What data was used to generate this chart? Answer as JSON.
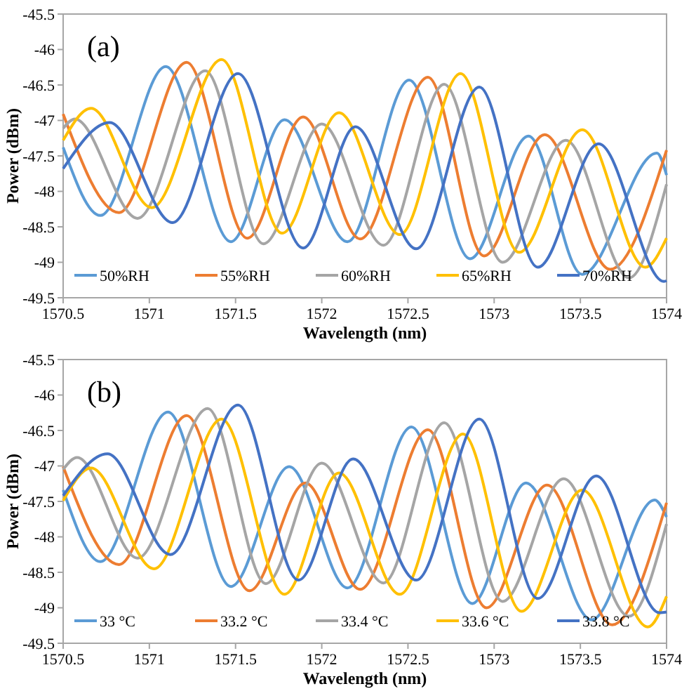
{
  "chart_data": [
    {
      "type": "line",
      "annotations": [
        "(a)"
      ],
      "xlabel": "Wavelength (nm)",
      "ylabel": "Power (dBm)",
      "xlim": [
        1570.5,
        1574
      ],
      "ylim": [
        -49.5,
        -45.5
      ],
      "xticks": [
        1570.5,
        1571,
        1571.5,
        1572,
        1572.5,
        1573,
        1573.5,
        1574
      ],
      "yticks": [
        -49.5,
        -49,
        -48.5,
        -48,
        -47.5,
        -47,
        -46.5,
        -46,
        -45.5
      ],
      "legend": "bottom left",
      "grid": false,
      "marker": "none",
      "line_style": "solid",
      "series": [
        {
          "name": "50%RH",
          "color": "#5b9bd5",
          "x": [
            1570.5,
            1570.716,
            1571.095,
            1571.473,
            1571.784,
            1572.149,
            1572.507,
            1572.86,
            1573.199,
            1573.51,
            1573.944,
            1574
          ],
          "values": [
            -47.38,
            -48.34,
            -46.24,
            -48.71,
            -46.99,
            -48.71,
            -46.43,
            -48.95,
            -47.22,
            -49.17,
            -47.46,
            -47.77
          ]
        },
        {
          "name": "55%RH",
          "color": "#ed7d31",
          "x": [
            1570.5,
            1570.824,
            1571.216,
            1571.568,
            1571.892,
            1572.223,
            1572.616,
            1572.941,
            1573.293,
            1573.673,
            1574
          ],
          "values": [
            -46.91,
            -48.3,
            -46.18,
            -48.66,
            -46.95,
            -48.67,
            -46.39,
            -48.91,
            -47.2,
            -49.1,
            -47.42
          ]
        },
        {
          "name": "60%RH",
          "color": "#a5a5a5",
          "x": [
            1570.5,
            1570.568,
            1570.932,
            1571.324,
            1571.662,
            1572,
            1572.358,
            1572.71,
            1573.049,
            1573.416,
            1573.782,
            1574
          ],
          "values": [
            -47.11,
            -46.98,
            -48.38,
            -46.3,
            -48.74,
            -47.05,
            -48.76,
            -46.49,
            -49,
            -47.28,
            -49.22,
            -47.9
          ]
        },
        {
          "name": "65%RH",
          "color": "#ffc000",
          "x": [
            1570.5,
            1570.662,
            1571.014,
            1571.419,
            1571.77,
            1572.1,
            1572.453,
            1572.805,
            1573.144,
            1573.511,
            1573.877,
            1574
          ],
          "values": [
            -47.28,
            -46.83,
            -48.23,
            -46.14,
            -48.59,
            -46.89,
            -48.61,
            -46.34,
            -48.86,
            -47.13,
            -49.07,
            -48.66
          ]
        },
        {
          "name": "70%RH",
          "color": "#4472c4",
          "x": [
            1570.5,
            1570.77,
            1571.135,
            1571.514,
            1571.892,
            1572.195,
            1572.548,
            1572.914,
            1573.253,
            1573.606,
            1573.985,
            1574
          ],
          "values": [
            -47.68,
            -47.03,
            -48.44,
            -46.34,
            -48.8,
            -47.09,
            -48.81,
            -46.53,
            -49.07,
            -47.33,
            -49.27,
            -49.26
          ]
        }
      ]
    },
    {
      "type": "line",
      "annotations": [
        "(b)"
      ],
      "xlabel": "Wavelength (nm)",
      "ylabel": "Power (dBm)",
      "xlim": [
        1570.5,
        1574
      ],
      "ylim": [
        -49.5,
        -45.5
      ],
      "xticks": [
        1570.5,
        1571,
        1571.5,
        1572,
        1572.5,
        1573,
        1573.5,
        1574
      ],
      "yticks": [
        -49.5,
        -49,
        -48.5,
        -48,
        -47.5,
        -47,
        -46.5,
        -46,
        -45.5
      ],
      "legend": "bottom left",
      "grid": false,
      "marker": "none",
      "line_style": "solid",
      "series": [
        {
          "name": "33 °C",
          "color": "#5b9bd5",
          "x": [
            1570.5,
            1570.716,
            1571.108,
            1571.473,
            1571.811,
            1572.149,
            1572.52,
            1572.873,
            1573.185,
            1573.565,
            1573.931,
            1574
          ],
          "values": [
            -47.34,
            -48.35,
            -46.24,
            -48.7,
            -47.01,
            -48.72,
            -46.45,
            -48.94,
            -47.24,
            -49.17,
            -47.48,
            -47.72
          ]
        },
        {
          "name": "33.2 °C",
          "color": "#ed7d31",
          "x": [
            1570.5,
            1570.824,
            1571.216,
            1571.581,
            1571.905,
            1572.223,
            1572.616,
            1572.955,
            1573.307,
            1573.685,
            1574
          ],
          "values": [
            -47.01,
            -48.39,
            -46.29,
            -48.76,
            -47.24,
            -48.74,
            -46.49,
            -49,
            -47.27,
            -49.24,
            -47.52
          ]
        },
        {
          "name": "33.4 °C",
          "color": "#a5a5a5",
          "x": [
            1570.5,
            1570.581,
            1570.932,
            1571.338,
            1571.676,
            1572,
            1572.358,
            1572.71,
            1573.049,
            1573.403,
            1573.782,
            1574
          ],
          "values": [
            -47.05,
            -46.88,
            -48.3,
            -46.19,
            -48.66,
            -46.96,
            -48.65,
            -46.39,
            -48.91,
            -47.18,
            -49.12,
            -47.82
          ]
        },
        {
          "name": "33.6 °C",
          "color": "#ffc000",
          "x": [
            1570.5,
            1570.662,
            1571.027,
            1571.419,
            1571.784,
            1572.1,
            1572.453,
            1572.819,
            1573.158,
            1573.511,
            1573.891,
            1574
          ],
          "values": [
            -47.49,
            -47.03,
            -48.45,
            -46.34,
            -48.81,
            -47.1,
            -48.81,
            -46.55,
            -49.05,
            -47.34,
            -49.27,
            -48.84
          ]
        },
        {
          "name": "33.8 °C",
          "color": "#4472c4",
          "x": [
            1570.5,
            1570.757,
            1571.122,
            1571.514,
            1571.865,
            1572.182,
            1572.548,
            1572.914,
            1573.253,
            1573.592,
            1573.958,
            1574
          ],
          "values": [
            -47.42,
            -46.83,
            -48.25,
            -46.14,
            -48.61,
            -46.9,
            -48.61,
            -46.34,
            -48.87,
            -47.14,
            -49.07,
            -49.06
          ]
        }
      ]
    }
  ]
}
